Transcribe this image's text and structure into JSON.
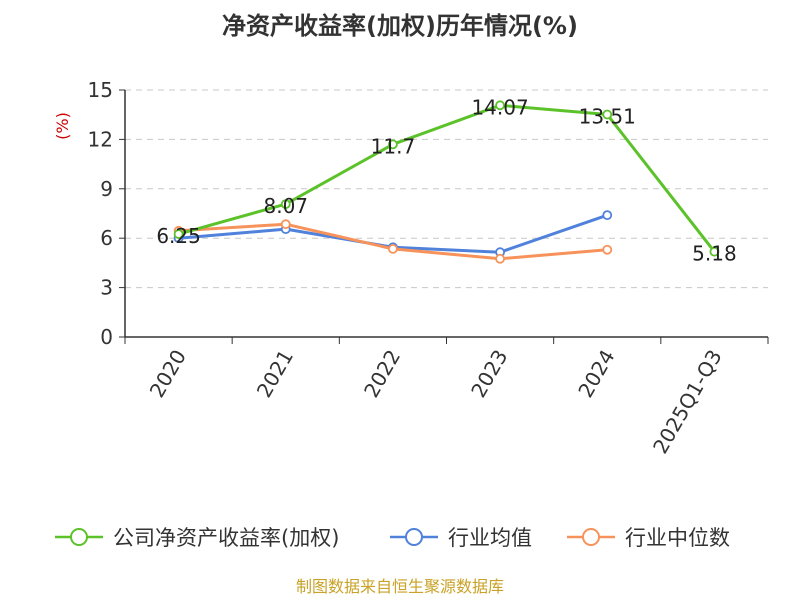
{
  "colors": {
    "company": "#5cc22a",
    "avg": "#5082dc",
    "median": "#f7935a",
    "grid": "#c8c8c8",
    "axis": "#333333",
    "source": "#c9a227"
  },
  "source_text": "制图数据来自恒生聚源数据库",
  "chart_data": {
    "type": "line",
    "title": "净资产收益率(加权)历年情况(%)",
    "ylabel": "(%)",
    "xlabel": "",
    "ylim": [
      0,
      15
    ],
    "yticks": [
      0,
      3,
      6,
      9,
      12,
      15
    ],
    "grid": true,
    "legend_position": "bottom",
    "categories": [
      "2020",
      "2021",
      "2022",
      "2023",
      "2024",
      "2025Q1-Q3"
    ],
    "series": [
      {
        "name": "公司净资产收益率(加权)",
        "color_key": "company",
        "values": [
          6.25,
          8.07,
          11.7,
          14.07,
          13.51,
          5.18
        ],
        "labels": [
          "6.25",
          "8.07",
          "11.7",
          "14.07",
          "13.51",
          "5.18"
        ]
      },
      {
        "name": "行业均值",
        "color_key": "avg",
        "values": [
          6.0,
          6.55,
          5.45,
          5.15,
          7.4,
          null
        ]
      },
      {
        "name": "行业中位数",
        "color_key": "median",
        "values": [
          6.45,
          6.85,
          5.35,
          4.75,
          5.3,
          null
        ]
      }
    ]
  }
}
